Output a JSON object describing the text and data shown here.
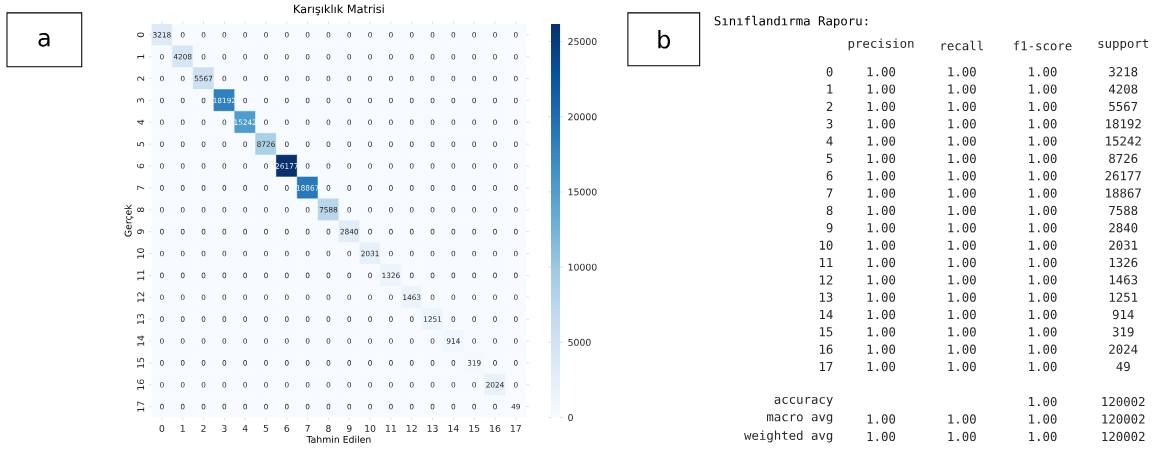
{
  "chart_data": [
    {
      "type": "heatmap",
      "title": "Karışıklık Matrisi",
      "xlabel": "Tahmin Edilen",
      "ylabel": "Gerçek",
      "categories": [
        "0",
        "1",
        "2",
        "3",
        "4",
        "5",
        "6",
        "7",
        "8",
        "9",
        "10",
        "11",
        "12",
        "13",
        "14",
        "15",
        "16",
        "17"
      ],
      "y_categories": [
        "0",
        "1",
        "2",
        "3",
        "4",
        "5",
        "6",
        "7",
        "8",
        "9",
        "10",
        "11",
        "12",
        "13",
        "14",
        "15",
        "16",
        "17"
      ],
      "cells": [
        [
          3218,
          0,
          0,
          0,
          0,
          0,
          0,
          0,
          0,
          0,
          0,
          0,
          0,
          0,
          0,
          0,
          0,
          0
        ],
        [
          0,
          4208,
          0,
          0,
          0,
          0,
          0,
          0,
          0,
          0,
          0,
          0,
          0,
          0,
          0,
          0,
          0,
          0
        ],
        [
          0,
          0,
          5567,
          0,
          0,
          0,
          0,
          0,
          0,
          0,
          0,
          0,
          0,
          0,
          0,
          0,
          0,
          0
        ],
        [
          0,
          0,
          0,
          18192,
          0,
          0,
          0,
          0,
          0,
          0,
          0,
          0,
          0,
          0,
          0,
          0,
          0,
          0
        ],
        [
          0,
          0,
          0,
          0,
          15242,
          0,
          0,
          0,
          0,
          0,
          0,
          0,
          0,
          0,
          0,
          0,
          0,
          0
        ],
        [
          0,
          0,
          0,
          0,
          0,
          8726,
          0,
          0,
          0,
          0,
          0,
          0,
          0,
          0,
          0,
          0,
          0,
          0
        ],
        [
          0,
          0,
          0,
          0,
          0,
          0,
          26177,
          0,
          0,
          0,
          0,
          0,
          0,
          0,
          0,
          0,
          0,
          0
        ],
        [
          0,
          0,
          0,
          0,
          0,
          0,
          0,
          18867,
          0,
          0,
          0,
          0,
          0,
          0,
          0,
          0,
          0,
          0
        ],
        [
          0,
          0,
          0,
          0,
          0,
          0,
          0,
          0,
          7588,
          0,
          0,
          0,
          0,
          0,
          0,
          0,
          0,
          0
        ],
        [
          0,
          0,
          0,
          0,
          0,
          0,
          0,
          0,
          0,
          2840,
          0,
          0,
          0,
          0,
          0,
          0,
          0,
          0
        ],
        [
          0,
          0,
          0,
          0,
          0,
          0,
          0,
          0,
          0,
          0,
          2031,
          0,
          0,
          0,
          0,
          0,
          0,
          0
        ],
        [
          0,
          0,
          0,
          0,
          0,
          0,
          0,
          0,
          0,
          0,
          0,
          1326,
          0,
          0,
          0,
          0,
          0,
          0
        ],
        [
          0,
          0,
          0,
          0,
          0,
          0,
          0,
          0,
          0,
          0,
          0,
          0,
          1463,
          0,
          0,
          0,
          0,
          0
        ],
        [
          0,
          0,
          0,
          0,
          0,
          0,
          0,
          0,
          0,
          0,
          0,
          0,
          0,
          1251,
          0,
          0,
          0,
          0
        ],
        [
          0,
          0,
          0,
          0,
          0,
          0,
          0,
          0,
          0,
          0,
          0,
          0,
          0,
          0,
          914,
          0,
          0,
          0
        ],
        [
          0,
          0,
          0,
          0,
          0,
          0,
          0,
          0,
          0,
          0,
          0,
          0,
          0,
          0,
          0,
          319,
          0,
          0
        ],
        [
          0,
          0,
          0,
          0,
          0,
          0,
          0,
          0,
          0,
          0,
          0,
          0,
          0,
          0,
          0,
          0,
          2024,
          0
        ],
        [
          0,
          0,
          0,
          0,
          0,
          0,
          0,
          0,
          0,
          0,
          0,
          0,
          0,
          0,
          0,
          0,
          0,
          49
        ]
      ],
      "clim": [
        0,
        26177
      ],
      "cticks": [
        0,
        5000,
        10000,
        15000,
        20000,
        25000
      ],
      "data_labels": true,
      "annotations": [
        "a"
      ]
    },
    {
      "type": "heatmap",
      "title": "Sınıflandırma Raporu:",
      "categories": [
        "precision",
        "recall",
        "f1-score",
        "support"
      ],
      "y_categories": [
        "0",
        "1",
        "2",
        "3",
        "4",
        "5",
        "6",
        "7",
        "8",
        "9",
        "10",
        "11",
        "12",
        "13",
        "14",
        "15",
        "16",
        "17"
      ],
      "cells": [
        [
          1.0,
          1.0,
          1.0,
          3218
        ],
        [
          1.0,
          1.0,
          1.0,
          4208
        ],
        [
          1.0,
          1.0,
          1.0,
          5567
        ],
        [
          1.0,
          1.0,
          1.0,
          18192
        ],
        [
          1.0,
          1.0,
          1.0,
          15242
        ],
        [
          1.0,
          1.0,
          1.0,
          8726
        ],
        [
          1.0,
          1.0,
          1.0,
          26177
        ],
        [
          1.0,
          1.0,
          1.0,
          18867
        ],
        [
          1.0,
          1.0,
          1.0,
          7588
        ],
        [
          1.0,
          1.0,
          1.0,
          2840
        ],
        [
          1.0,
          1.0,
          1.0,
          2031
        ],
        [
          1.0,
          1.0,
          1.0,
          1326
        ],
        [
          1.0,
          1.0,
          1.0,
          1463
        ],
        [
          1.0,
          1.0,
          1.0,
          1251
        ],
        [
          1.0,
          1.0,
          1.0,
          914
        ],
        [
          1.0,
          1.0,
          1.0,
          319
        ],
        [
          1.0,
          1.0,
          1.0,
          2024
        ],
        [
          1.0,
          1.0,
          1.0,
          49
        ]
      ],
      "cell_labels": [
        [
          "1.00",
          "1.00",
          "1.00",
          "3218"
        ],
        [
          "1.00",
          "1.00",
          "1.00",
          "4208"
        ],
        [
          "1.00",
          "1.00",
          "1.00",
          "5567"
        ],
        [
          "1.00",
          "1.00",
          "1.00",
          "18192"
        ],
        [
          "1.00",
          "1.00",
          "1.00",
          "15242"
        ],
        [
          "1.00",
          "1.00",
          "1.00",
          "8726"
        ],
        [
          "1.00",
          "1.00",
          "1.00",
          "26177"
        ],
        [
          "1.00",
          "1.00",
          "1.00",
          "18867"
        ],
        [
          "1.00",
          "1.00",
          "1.00",
          "7588"
        ],
        [
          "1.00",
          "1.00",
          "1.00",
          "2840"
        ],
        [
          "1.00",
          "1.00",
          "1.00",
          "2031"
        ],
        [
          "1.00",
          "1.00",
          "1.00",
          "1326"
        ],
        [
          "1.00",
          "1.00",
          "1.00",
          "1463"
        ],
        [
          "1.00",
          "1.00",
          "1.00",
          "1251"
        ],
        [
          "1.00",
          "1.00",
          "1.00",
          "914"
        ],
        [
          "1.00",
          "1.00",
          "1.00",
          "319"
        ],
        [
          "1.00",
          "1.00",
          "1.00",
          "2024"
        ],
        [
          "1.00",
          "1.00",
          "1.00",
          "49"
        ]
      ],
      "annotations": [
        "b"
      ]
    },
    {
      "type": "heatmap",
      "categories": [
        null,
        null,
        null,
        null
      ],
      "y_categories": [
        "accuracy",
        "macro avg",
        "weighted avg"
      ],
      "cells": [
        [
          null,
          null,
          1.0,
          120002
        ],
        [
          1.0,
          1.0,
          1.0,
          120002
        ],
        [
          1.0,
          1.0,
          1.0,
          120002
        ]
      ],
      "cell_labels": [
        [
          null,
          null,
          "1.00",
          "120002"
        ],
        [
          "1.00",
          "1.00",
          "1.00",
          "120002"
        ],
        [
          "1.00",
          "1.00",
          "1.00",
          "120002"
        ]
      ]
    }
  ]
}
